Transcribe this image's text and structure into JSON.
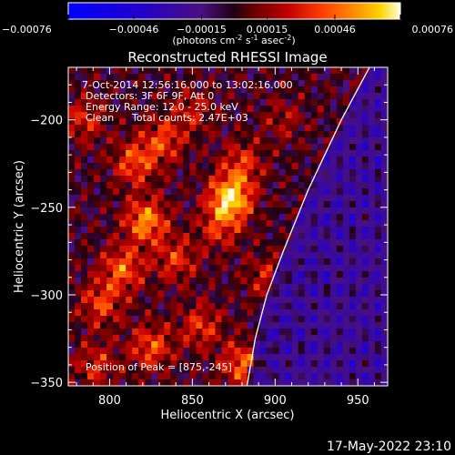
{
  "chart_data": {
    "type": "heatmap",
    "title": "Reconstructed RHESSI Image",
    "xlabel": "Heliocentric X (arcsec)",
    "ylabel": "Heliocentric Y (arcsec)",
    "xlim": [
      775,
      968
    ],
    "ylim": [
      -352,
      -170
    ],
    "x_ticks": [
      800,
      850,
      900,
      950
    ],
    "y_ticks": [
      -200,
      -250,
      -300,
      -350
    ],
    "peak": [
      875,
      -245
    ],
    "colorbar": {
      "range": [
        -0.00076,
        0.00076
      ],
      "ticks": [
        "-0.00076",
        "-0.00046",
        "-0.00015",
        "0.00015",
        "0.00046",
        "0.00076"
      ],
      "tick_values": [
        -0.00076,
        -0.00046,
        -0.00015,
        0.00015,
        0.00046,
        0.00076
      ],
      "unit_main": "(photons cm",
      "unit_exp1": "-2",
      "unit_mid1": " s",
      "unit_exp2": "-1",
      "unit_mid2": " asec",
      "unit_exp3": "-2",
      "unit_end": ")"
    },
    "annotations": {
      "time": "7-Oct-2014 12:56:16.000 to 13:02:16.000",
      "detectors": "Detectors: 3F 6F 9F, Att 0",
      "energy": "Energy Range: 12.0 - 25.0 keV",
      "method": "Clean",
      "counts": "Total counts: 2.47E+03",
      "peak_label": "Position of Peak = [875,-245]"
    },
    "sources": [
      {
        "x": 873,
        "y": -245,
        "amp": 1.0
      },
      {
        "x": 880,
        "y": -225,
        "amp": 0.45
      },
      {
        "x": 866,
        "y": -262,
        "amp": 0.4
      },
      {
        "x": 822,
        "y": -258,
        "amp": 0.75
      },
      {
        "x": 815,
        "y": -225,
        "amp": 0.55
      },
      {
        "x": 832,
        "y": -212,
        "amp": 0.5
      },
      {
        "x": 808,
        "y": -285,
        "amp": 0.6
      },
      {
        "x": 840,
        "y": -280,
        "amp": 0.45
      },
      {
        "x": 795,
        "y": -305,
        "amp": 0.5
      },
      {
        "x": 825,
        "y": -330,
        "amp": 0.55
      },
      {
        "x": 855,
        "y": -318,
        "amp": 0.45
      },
      {
        "x": 880,
        "y": -340,
        "amp": 0.6
      },
      {
        "x": 895,
        "y": -290,
        "amp": 0.35
      },
      {
        "x": 785,
        "y": -200,
        "amp": 0.4
      },
      {
        "x": 850,
        "y": -195,
        "amp": 0.35
      },
      {
        "x": 792,
        "y": -340,
        "amp": 0.4
      },
      {
        "x": 905,
        "y": -200,
        "amp": 0.25
      }
    ],
    "limb": [
      [
        957,
        -170
      ],
      [
        940,
        -200
      ],
      [
        920,
        -240
      ],
      [
        905,
        -275
      ],
      [
        895,
        -300
      ],
      [
        888,
        -325
      ],
      [
        883,
        -352
      ]
    ]
  },
  "footer": {
    "date": "17-May-2022 23:10"
  }
}
